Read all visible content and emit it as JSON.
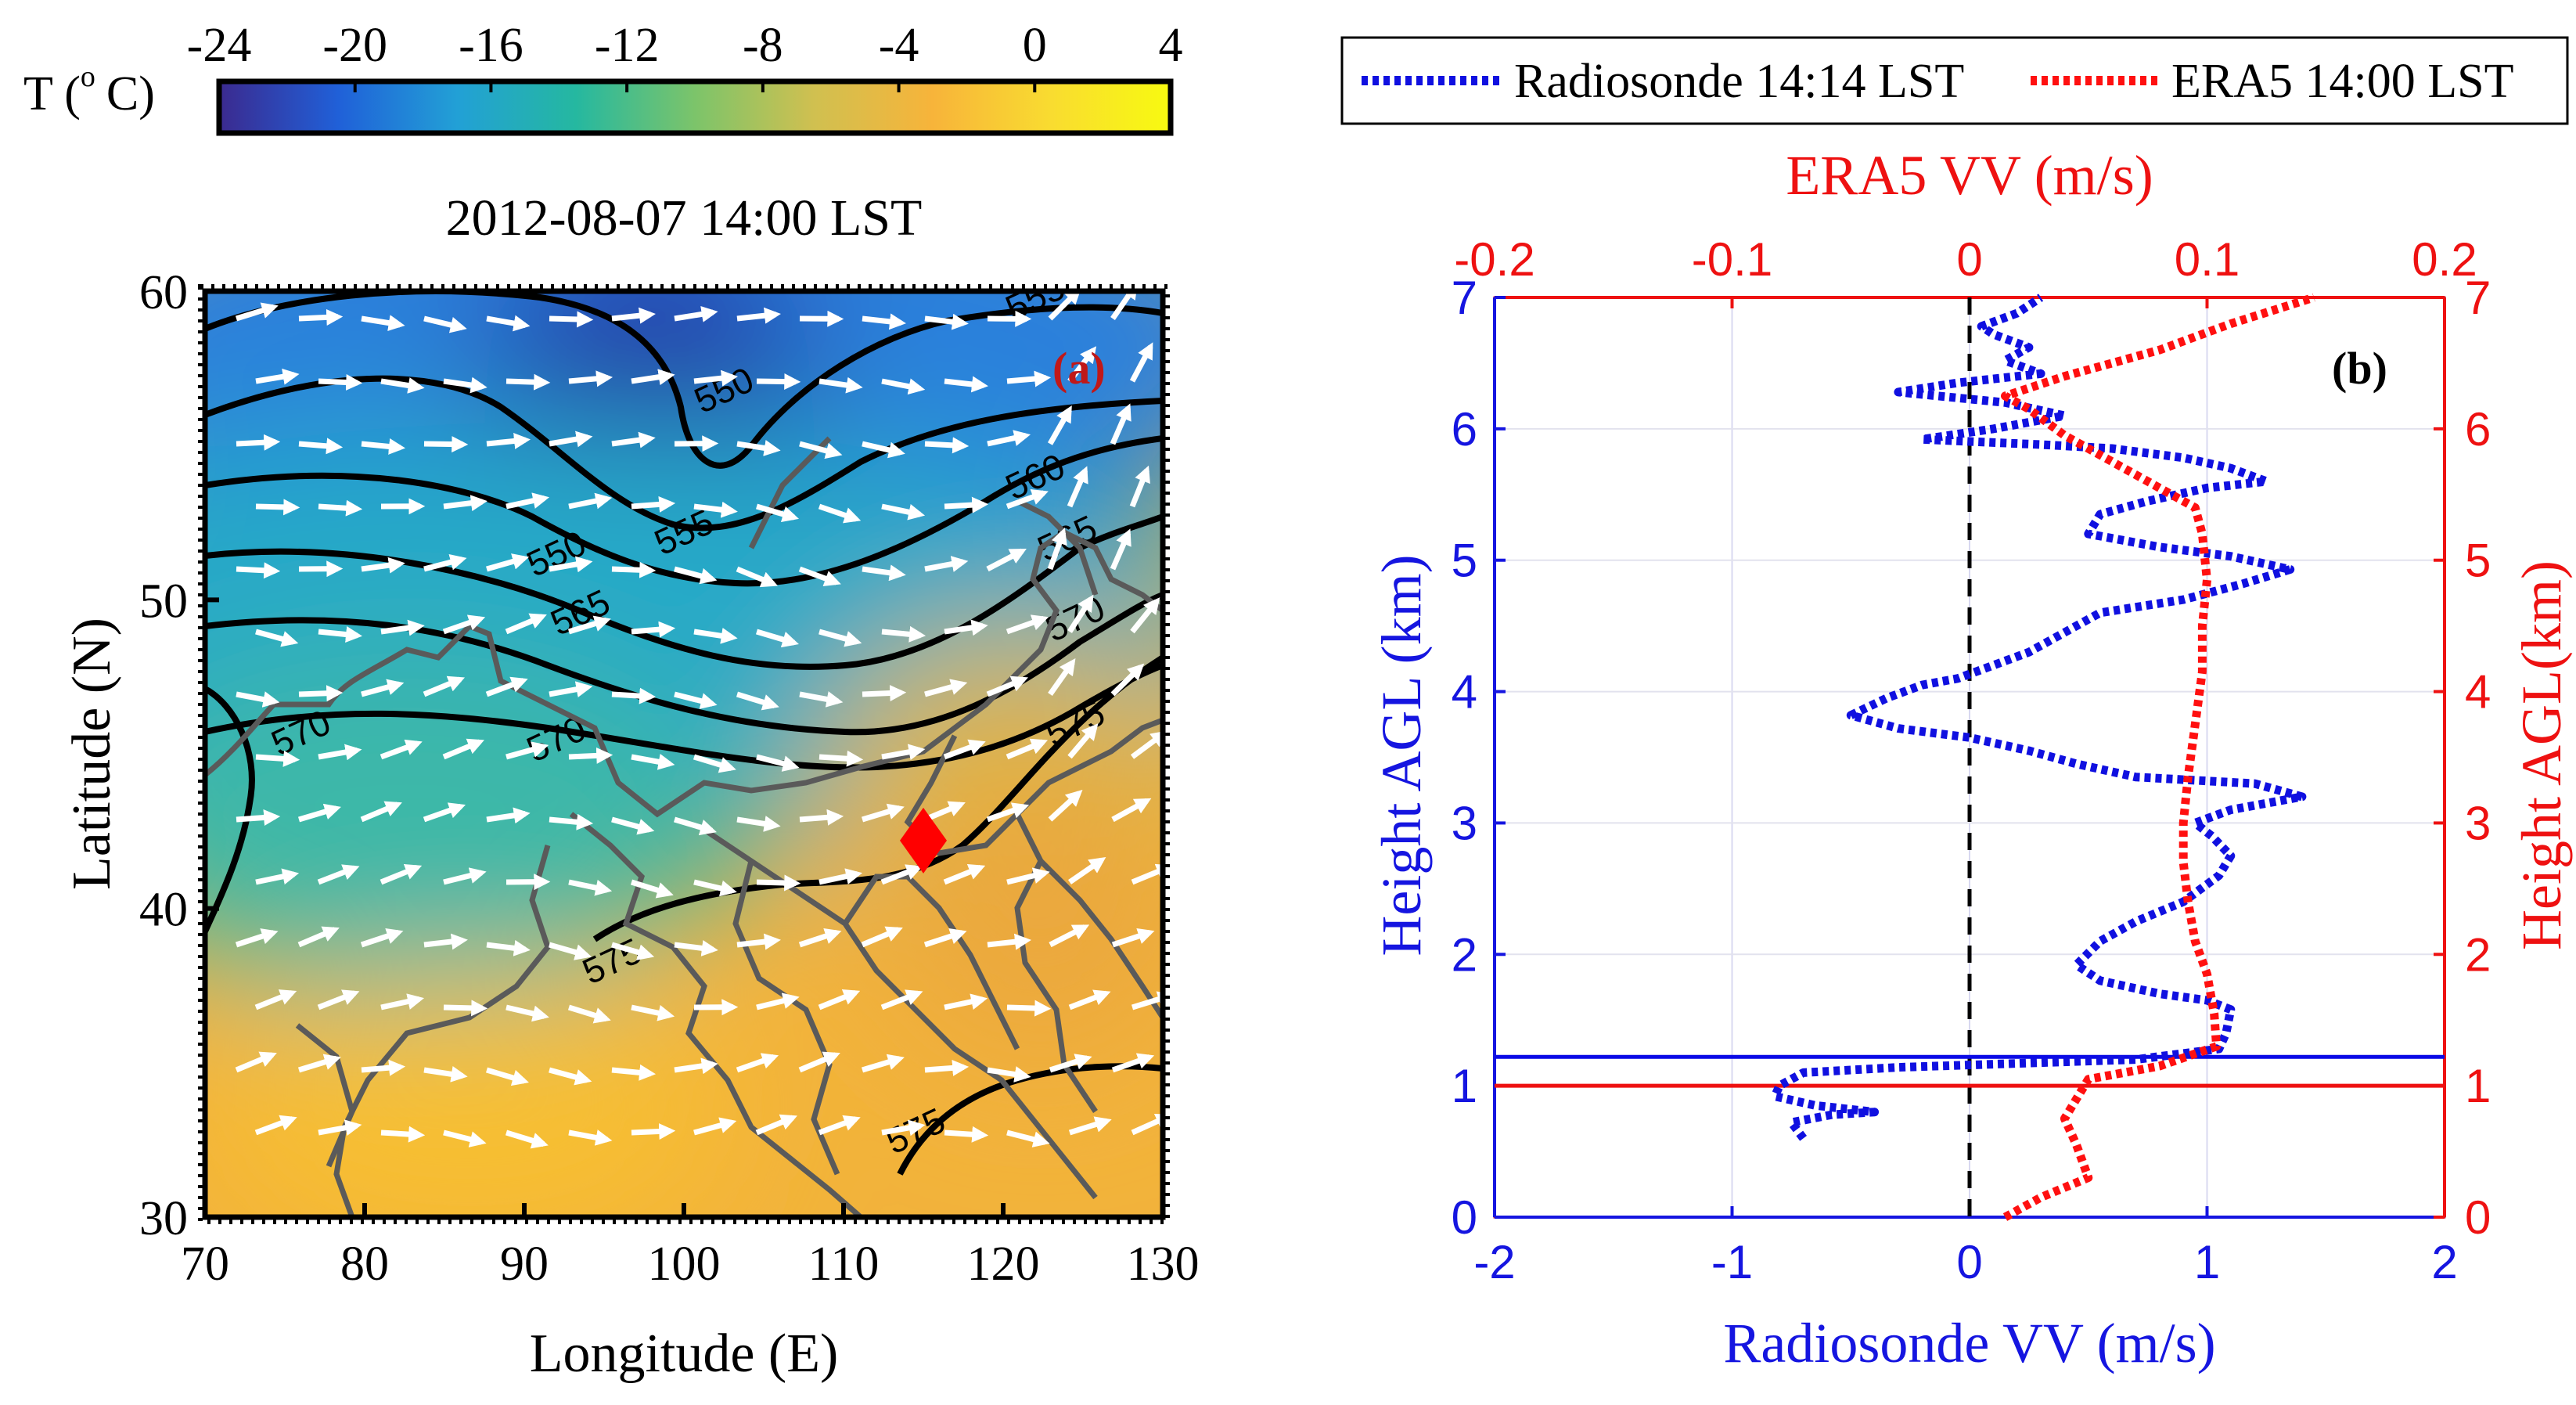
{
  "colorbar": {
    "label_parts": [
      "T (",
      "o",
      "C)"
    ],
    "ticks": [
      -24,
      -20,
      -16,
      -12,
      -8,
      -4,
      0,
      4
    ],
    "range": [
      -24,
      4
    ],
    "colors": [
      "#3b2a8f",
      "#2060d8",
      "#22a0d6",
      "#25b8a0",
      "#7cc46a",
      "#d0c050",
      "#f7b43a",
      "#f9dc30",
      "#f8fa10"
    ]
  },
  "chart_data": [
    {
      "type": "contour-map",
      "panel_label": "(a)",
      "title": "2012-08-07 14:00 LST",
      "xlabel": "Longitude (E)",
      "ylabel": "Latitude (N)",
      "xlim": [
        70,
        130
      ],
      "ylim": [
        30,
        60
      ],
      "xticks": [
        70,
        80,
        90,
        100,
        110,
        120,
        130
      ],
      "yticks": [
        30,
        40,
        50,
        60
      ],
      "marker": {
        "lon": 115,
        "lat": 42.2,
        "shape": "diamond",
        "color": "#ff0000"
      },
      "contour_labels": [
        {
          "text": "550",
          "lon": 102.5,
          "lat": 56.8
        },
        {
          "text": "550",
          "lon": 92.0,
          "lat": 51.5
        },
        {
          "text": "555",
          "lon": 100.0,
          "lat": 52.2
        },
        {
          "text": "555",
          "lon": 122.0,
          "lat": 59.8
        },
        {
          "text": "560",
          "lon": 122.0,
          "lat": 54.0
        },
        {
          "text": "565",
          "lon": 93.5,
          "lat": 49.6
        },
        {
          "text": "565",
          "lon": 124.0,
          "lat": 52.0
        },
        {
          "text": "570",
          "lon": 76.0,
          "lat": 45.7
        },
        {
          "text": "570",
          "lon": 92.0,
          "lat": 45.5
        },
        {
          "text": "570",
          "lon": 124.5,
          "lat": 49.4
        },
        {
          "text": "575",
          "lon": 124.5,
          "lat": 46.0
        },
        {
          "text": "575",
          "lon": 95.5,
          "lat": 38.3
        },
        {
          "text": "575",
          "lon": 114.5,
          "lat": 32.8
        }
      ]
    },
    {
      "type": "line",
      "panel_label": "(b)",
      "legend": [
        "Radiosonde 14:14 LST",
        "ERA5 14:00 LST"
      ],
      "top_xlabel": "ERA5 VV (m/s)",
      "bottom_xlabel": "Radiosonde VV (m/s)",
      "left_ylabel": "Height AGL (km)",
      "right_ylabel": "Height AGL(km)",
      "bottom_xlim": [
        -2,
        2
      ],
      "top_xlim": [
        -0.2,
        0.2
      ],
      "ylim": [
        0,
        7
      ],
      "bottom_xticks": [
        "-2",
        "-1",
        "0",
        "1",
        "2"
      ],
      "top_xticks": [
        "-0.2",
        "-0.1",
        "0",
        "0.1",
        "0.2"
      ],
      "yticks": [
        "0",
        "1",
        "2",
        "3",
        "4",
        "5",
        "6",
        "7"
      ],
      "series": [
        {
          "name": "Radiosonde 14:14 LST",
          "color": "#1010e0",
          "points": [
            [
              -0.7,
              0.6
            ],
            [
              -0.75,
              0.72
            ],
            [
              -0.58,
              0.78
            ],
            [
              -0.4,
              0.8
            ],
            [
              -0.65,
              0.85
            ],
            [
              -0.82,
              0.92
            ],
            [
              -0.8,
              1.0
            ],
            [
              -0.7,
              1.1
            ],
            [
              -0.3,
              1.14
            ],
            [
              0.2,
              1.17
            ],
            [
              0.7,
              1.2
            ],
            [
              1.05,
              1.28
            ],
            [
              1.08,
              1.4
            ],
            [
              1.1,
              1.58
            ],
            [
              1.0,
              1.65
            ],
            [
              0.8,
              1.7
            ],
            [
              0.55,
              1.8
            ],
            [
              0.45,
              1.92
            ],
            [
              0.55,
              2.1
            ],
            [
              0.7,
              2.25
            ],
            [
              0.9,
              2.4
            ],
            [
              1.05,
              2.6
            ],
            [
              1.1,
              2.75
            ],
            [
              1.02,
              2.9
            ],
            [
              0.95,
              3.0
            ],
            [
              1.1,
              3.1
            ],
            [
              1.4,
              3.2
            ],
            [
              1.2,
              3.3
            ],
            [
              0.7,
              3.35
            ],
            [
              0.45,
              3.45
            ],
            [
              0.25,
              3.55
            ],
            [
              0.0,
              3.65
            ],
            [
              -0.3,
              3.72
            ],
            [
              -0.5,
              3.82
            ],
            [
              -0.35,
              3.95
            ],
            [
              -0.2,
              4.05
            ],
            [
              -0.05,
              4.1
            ],
            [
              0.1,
              4.2
            ],
            [
              0.25,
              4.3
            ],
            [
              0.4,
              4.45
            ],
            [
              0.55,
              4.6
            ],
            [
              0.9,
              4.7
            ],
            [
              1.15,
              4.82
            ],
            [
              1.35,
              4.93
            ],
            [
              1.1,
              5.03
            ],
            [
              0.8,
              5.1
            ],
            [
              0.5,
              5.2
            ],
            [
              0.55,
              5.35
            ],
            [
              0.75,
              5.45
            ],
            [
              1.0,
              5.55
            ],
            [
              1.25,
              5.6
            ],
            [
              1.1,
              5.7
            ],
            [
              0.9,
              5.78
            ],
            [
              0.6,
              5.85
            ],
            [
              0.3,
              5.88
            ],
            [
              -0.2,
              5.92
            ],
            [
              0.1,
              6.0
            ],
            [
              0.4,
              6.1
            ],
            [
              0.15,
              6.2
            ],
            [
              -0.3,
              6.28
            ],
            [
              -0.05,
              6.35
            ],
            [
              0.3,
              6.42
            ],
            [
              0.15,
              6.52
            ],
            [
              0.25,
              6.62
            ],
            [
              0.1,
              6.72
            ],
            [
              0.05,
              6.78
            ],
            [
              0.2,
              6.88
            ],
            [
              0.3,
              7.0
            ]
          ]
        },
        {
          "name": "ERA5 14:00 LST",
          "color": "#ff1010",
          "points": [
            [
              0.015,
              0.0
            ],
            [
              0.03,
              0.15
            ],
            [
              0.05,
              0.3
            ],
            [
              0.045,
              0.55
            ],
            [
              0.04,
              0.75
            ],
            [
              0.05,
              1.05
            ],
            [
              0.08,
              1.15
            ],
            [
              0.104,
              1.3
            ],
            [
              0.103,
              1.55
            ],
            [
              0.1,
              1.85
            ],
            [
              0.095,
              2.1
            ],
            [
              0.092,
              2.4
            ],
            [
              0.09,
              2.7
            ],
            [
              0.09,
              3.0
            ],
            [
              0.092,
              3.35
            ],
            [
              0.095,
              3.75
            ],
            [
              0.098,
              4.15
            ],
            [
              0.098,
              4.5
            ],
            [
              0.1,
              4.85
            ],
            [
              0.098,
              5.2
            ],
            [
              0.095,
              5.4
            ],
            [
              0.08,
              5.55
            ],
            [
              0.06,
              5.75
            ],
            [
              0.04,
              5.95
            ],
            [
              0.025,
              6.15
            ],
            [
              0.015,
              6.25
            ],
            [
              0.04,
              6.4
            ],
            [
              0.08,
              6.6
            ],
            [
              0.11,
              6.8
            ],
            [
              0.145,
              7.0
            ]
          ]
        }
      ],
      "hlines": [
        {
          "y": 1.22,
          "color": "#0a0ae6"
        },
        {
          "y": 1.0,
          "color": "#ee1111"
        }
      ],
      "vline": {
        "x": 0,
        "style": "dashed",
        "color": "#000000"
      }
    }
  ]
}
